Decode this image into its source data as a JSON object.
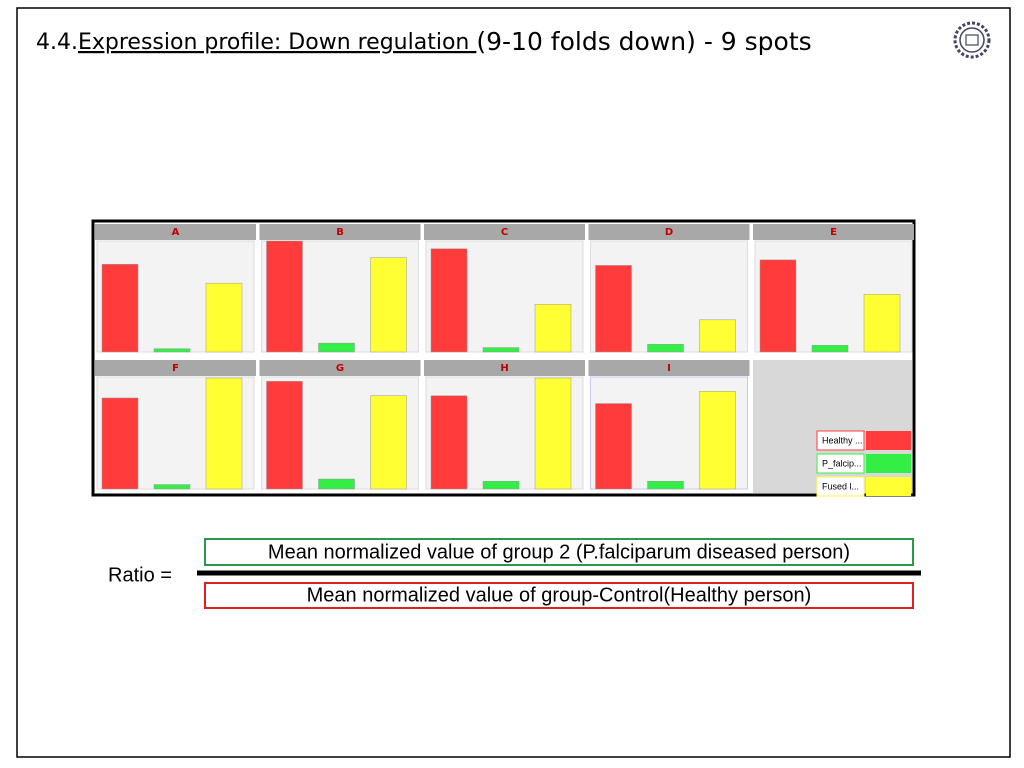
{
  "title_prefix": "4.4.",
  "title_underlined": "Expression profile: Down regulation ",
  "title_suffix": "(9-10 folds down) - 9 spots",
  "legend": [
    {
      "name": "Healthy ...",
      "color": "#ff3b3b"
    },
    {
      "name": "P_falcip...",
      "color": "#33ee44"
    },
    {
      "name": "Fused l...",
      "color": "#ffff33"
    }
  ],
  "chart_data": [
    {
      "type": "bar",
      "title": "A",
      "values": [
        79,
        3,
        62
      ],
      "ylim": [
        0,
        100
      ]
    },
    {
      "type": "bar",
      "title": "B",
      "values": [
        100,
        8,
        85
      ],
      "ylim": [
        0,
        100
      ]
    },
    {
      "type": "bar",
      "title": "C",
      "values": [
        93,
        4,
        43
      ],
      "ylim": [
        0,
        100
      ]
    },
    {
      "type": "bar",
      "title": "D",
      "values": [
        78,
        7,
        29
      ],
      "ylim": [
        0,
        100
      ]
    },
    {
      "type": "bar",
      "title": "E",
      "values": [
        83,
        6,
        52
      ],
      "ylim": [
        0,
        100
      ]
    },
    {
      "type": "bar",
      "title": "F",
      "values": [
        82,
        4,
        100
      ],
      "ylim": [
        0,
        100
      ]
    },
    {
      "type": "bar",
      "title": "G",
      "values": [
        97,
        9,
        84
      ],
      "ylim": [
        0,
        100
      ]
    },
    {
      "type": "bar",
      "title": "H",
      "values": [
        84,
        7,
        100
      ],
      "ylim": [
        0,
        100
      ]
    },
    {
      "type": "bar",
      "title": "I",
      "values": [
        77,
        7,
        88
      ],
      "ylim": [
        0,
        100
      ]
    }
  ],
  "ratio_label": "Ratio =",
  "numerator": "Mean normalized value of group 2 (P.falciparum diseased person)",
  "denominator": "Mean normalized value of group-Control(Healthy person)"
}
